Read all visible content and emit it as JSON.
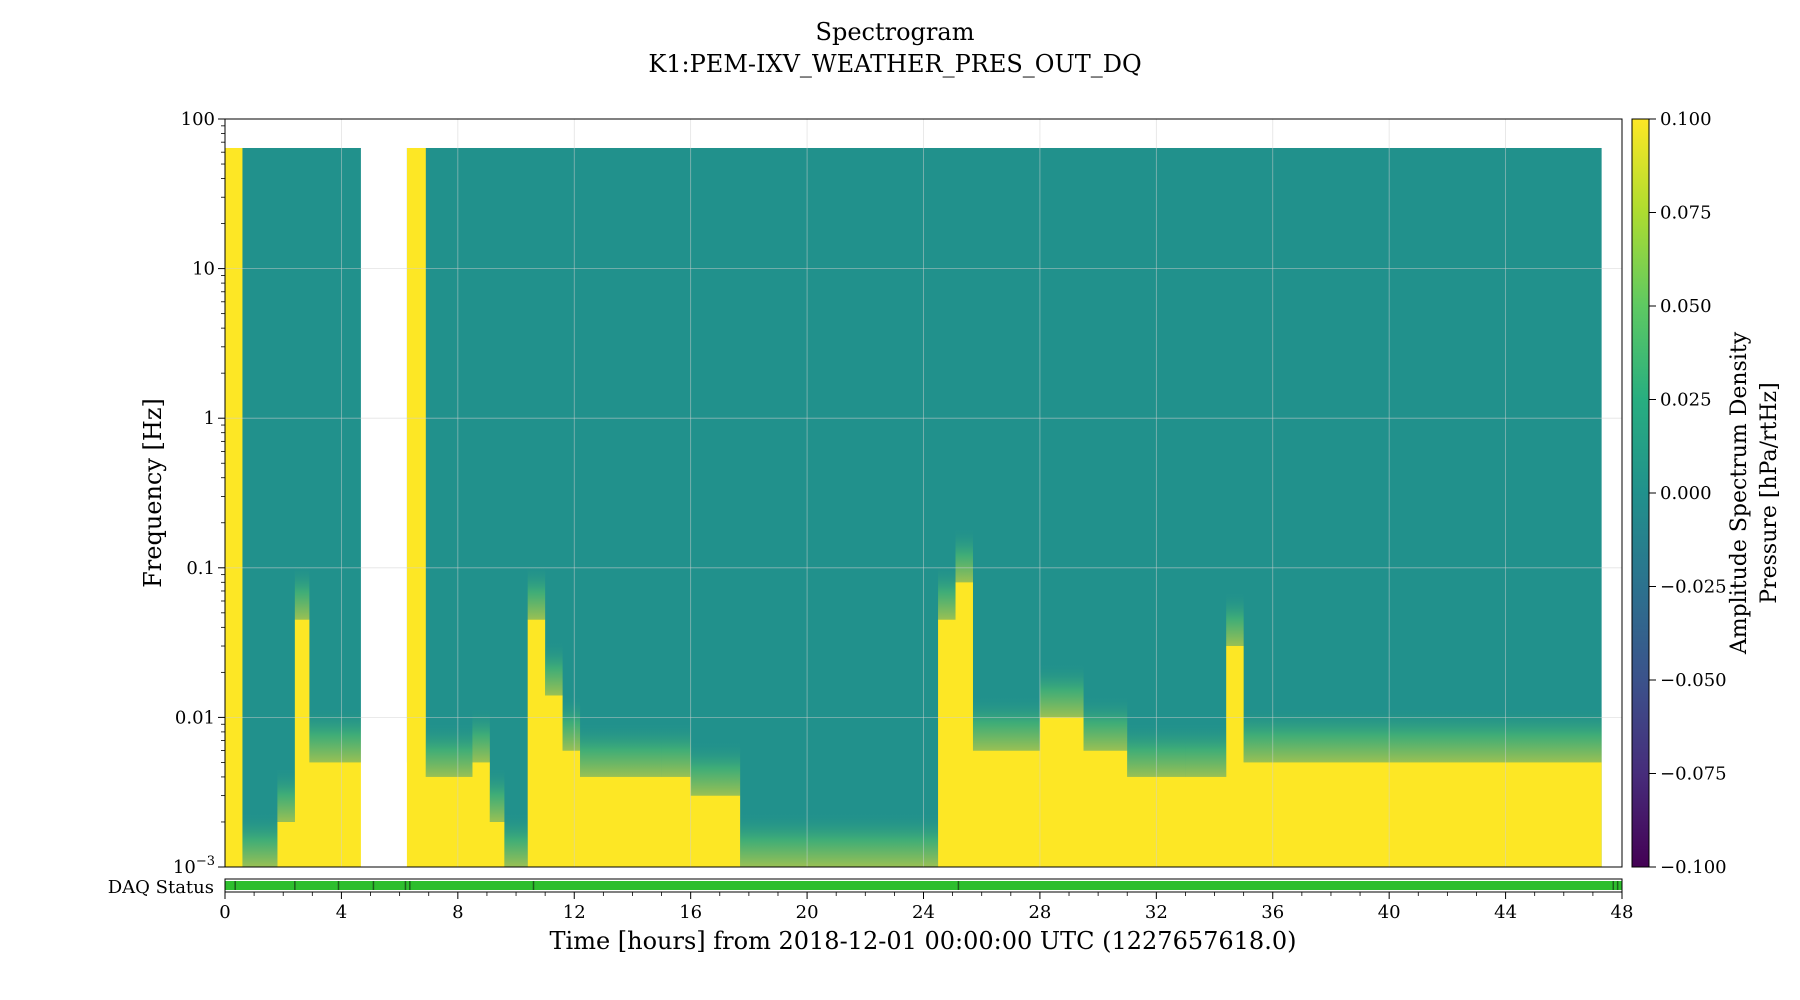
{
  "chart_data": {
    "type": "heatmap",
    "title": "Spectrogram",
    "subtitle": "K1:PEM-IXV_WEATHER_PRES_OUT_DQ",
    "xlabel": "Time [hours] from 2018-12-01 00:00:00 UTC (1227657618.0)",
    "ylabel": "Frequency [Hz]",
    "xlim": [
      0,
      48
    ],
    "ylim": [
      0.001,
      100
    ],
    "yscale": "log",
    "grid": true,
    "x_ticks": [
      "0",
      "4",
      "8",
      "12",
      "16",
      "20",
      "24",
      "28",
      "32",
      "36",
      "40",
      "44",
      "48"
    ],
    "y_ticks": [
      {
        "base": "10",
        "exp": "−3"
      },
      {
        "base": "0.01",
        "exp": ""
      },
      {
        "base": "0.1",
        "exp": ""
      },
      {
        "base": "1",
        "exp": ""
      },
      {
        "base": "10",
        "exp": ""
      },
      {
        "base": "100",
        "exp": ""
      }
    ],
    "colorbar": {
      "label_line1": "Amplitude Spectrum Density",
      "label_line2": "Pressure [hPa/rtHz]",
      "range": [
        -0.1,
        0.1
      ],
      "ticks": [
        "−0.100",
        "−0.075",
        "−0.050",
        "−0.025",
        "0.000",
        "0.025",
        "0.050",
        "0.075",
        "0.100"
      ],
      "colormap": "viridis"
    },
    "f_max": 64,
    "gaps_hours": [
      [
        4.67,
        6.25
      ]
    ],
    "low_freq_bright_edge": [
      {
        "t": 0.0,
        "f": 64
      },
      {
        "t": 0.6,
        "f": 0.001
      },
      {
        "t": 1.8,
        "f": 0.002
      },
      {
        "t": 2.4,
        "f": 0.045
      },
      {
        "t": 2.9,
        "f": 0.005
      },
      {
        "t": 4.67,
        "f": 0.005
      },
      {
        "t": 6.25,
        "f": 64
      },
      {
        "t": 6.9,
        "f": 0.004
      },
      {
        "t": 8.5,
        "f": 0.005
      },
      {
        "t": 9.1,
        "f": 0.002
      },
      {
        "t": 9.6,
        "f": 0.001
      },
      {
        "t": 10.4,
        "f": 0.045
      },
      {
        "t": 11.0,
        "f": 0.014
      },
      {
        "t": 11.6,
        "f": 0.006
      },
      {
        "t": 12.2,
        "f": 0.004
      },
      {
        "t": 15.0,
        "f": 0.004
      },
      {
        "t": 16.0,
        "f": 0.003
      },
      {
        "t": 17.7,
        "f": 0.001
      },
      {
        "t": 24.5,
        "f": 0.045
      },
      {
        "t": 25.1,
        "f": 0.08
      },
      {
        "t": 25.7,
        "f": 0.006
      },
      {
        "t": 28.0,
        "f": 0.01
      },
      {
        "t": 29.5,
        "f": 0.006
      },
      {
        "t": 31.0,
        "f": 0.004
      },
      {
        "t": 33.0,
        "f": 0.004
      },
      {
        "t": 34.4,
        "f": 0.03
      },
      {
        "t": 35.0,
        "f": 0.005
      },
      {
        "t": 47.3,
        "f": 0.004
      }
    ],
    "daq_status": {
      "label": "DAQ Status",
      "color": "#2ebe2e",
      "break_marks_hours": [
        0.35,
        2.4,
        3.9,
        5.1,
        6.2,
        6.35,
        10.6,
        25.2,
        47.7,
        47.85
      ]
    }
  }
}
